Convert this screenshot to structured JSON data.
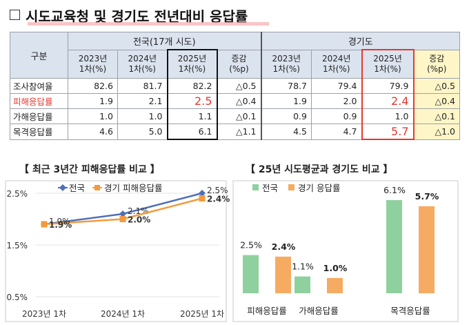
{
  "header": {
    "title": "시도교육청 및 경기도 전년대비 응답률"
  },
  "table": {
    "corner": "구분",
    "group_national": "전국(17개 시도)",
    "group_gyeonggi": "경기도",
    "col_headers": [
      "2023년\n1차(%)",
      "2024년\n1차(%)",
      "2025년\n1차(%)",
      "증감\n(%p)",
      "2023년\n1차(%)",
      "2024년\n1차(%)",
      "2025년\n1차(%)",
      "증감\n(%p)"
    ],
    "rows": [
      {
        "label": "조사참여율",
        "values": [
          "82.6",
          "81.7",
          "82.2",
          "△0.5",
          "78.7",
          "79.4",
          "79.9",
          "△0.5"
        ]
      },
      {
        "label": "피해응답률",
        "values": [
          "1.9",
          "2.1",
          "2.5",
          "△0.4",
          "1.9",
          "2.0",
          "2.4",
          "△0.4"
        ]
      },
      {
        "label": "가해응답률",
        "values": [
          "1.0",
          "1.0",
          "1.1",
          "△0.1",
          "0.9",
          "0.9",
          "1.0",
          "△0.1"
        ]
      },
      {
        "label": "목격응답률",
        "values": [
          "4.6",
          "5.0",
          "6.1",
          "△1.1",
          "4.5",
          "4.7",
          "5.7",
          "△1.0"
        ]
      }
    ]
  },
  "chart_data": [
    {
      "type": "line",
      "title": "【 최근 3년간 피해응답률 비교 】",
      "categories": [
        "2023년 1차",
        "2024년 1차",
        "2025년 1차"
      ],
      "y_ticks": [
        "0.5%",
        "1.5%",
        "2.5%"
      ],
      "ylim": [
        0.5,
        2.5
      ],
      "series": [
        {
          "name": "전국",
          "values": [
            1.9,
            2.1,
            2.5
          ],
          "labels": [
            "1.9%",
            "2.1%",
            "2.5%"
          ],
          "color": "#4f6fb8"
        },
        {
          "name": "경기 피해응답률",
          "values": [
            1.9,
            2.0,
            2.4
          ],
          "labels": [
            "1.9%",
            "2.0%",
            "2.4%"
          ],
          "color": "#f39a3d"
        }
      ],
      "legend": "top"
    },
    {
      "type": "bar",
      "title": "【 25년 시도평균과 경기도 비교 】",
      "categories": [
        "피해응답률",
        "가해응답률",
        "목격응답률"
      ],
      "ylim": [
        0,
        6.1
      ],
      "series": [
        {
          "name": "전국",
          "values": [
            2.5,
            1.1,
            6.1
          ],
          "labels": [
            "2.5%",
            "1.1%",
            "6.1%"
          ],
          "color": "#8fd19e"
        },
        {
          "name": "경기 응답률",
          "values": [
            2.4,
            1.0,
            5.7
          ],
          "labels": [
            "2.4%",
            "1.0%",
            "5.7%"
          ],
          "color": "#f6ab62"
        }
      ],
      "legend": "top"
    }
  ]
}
